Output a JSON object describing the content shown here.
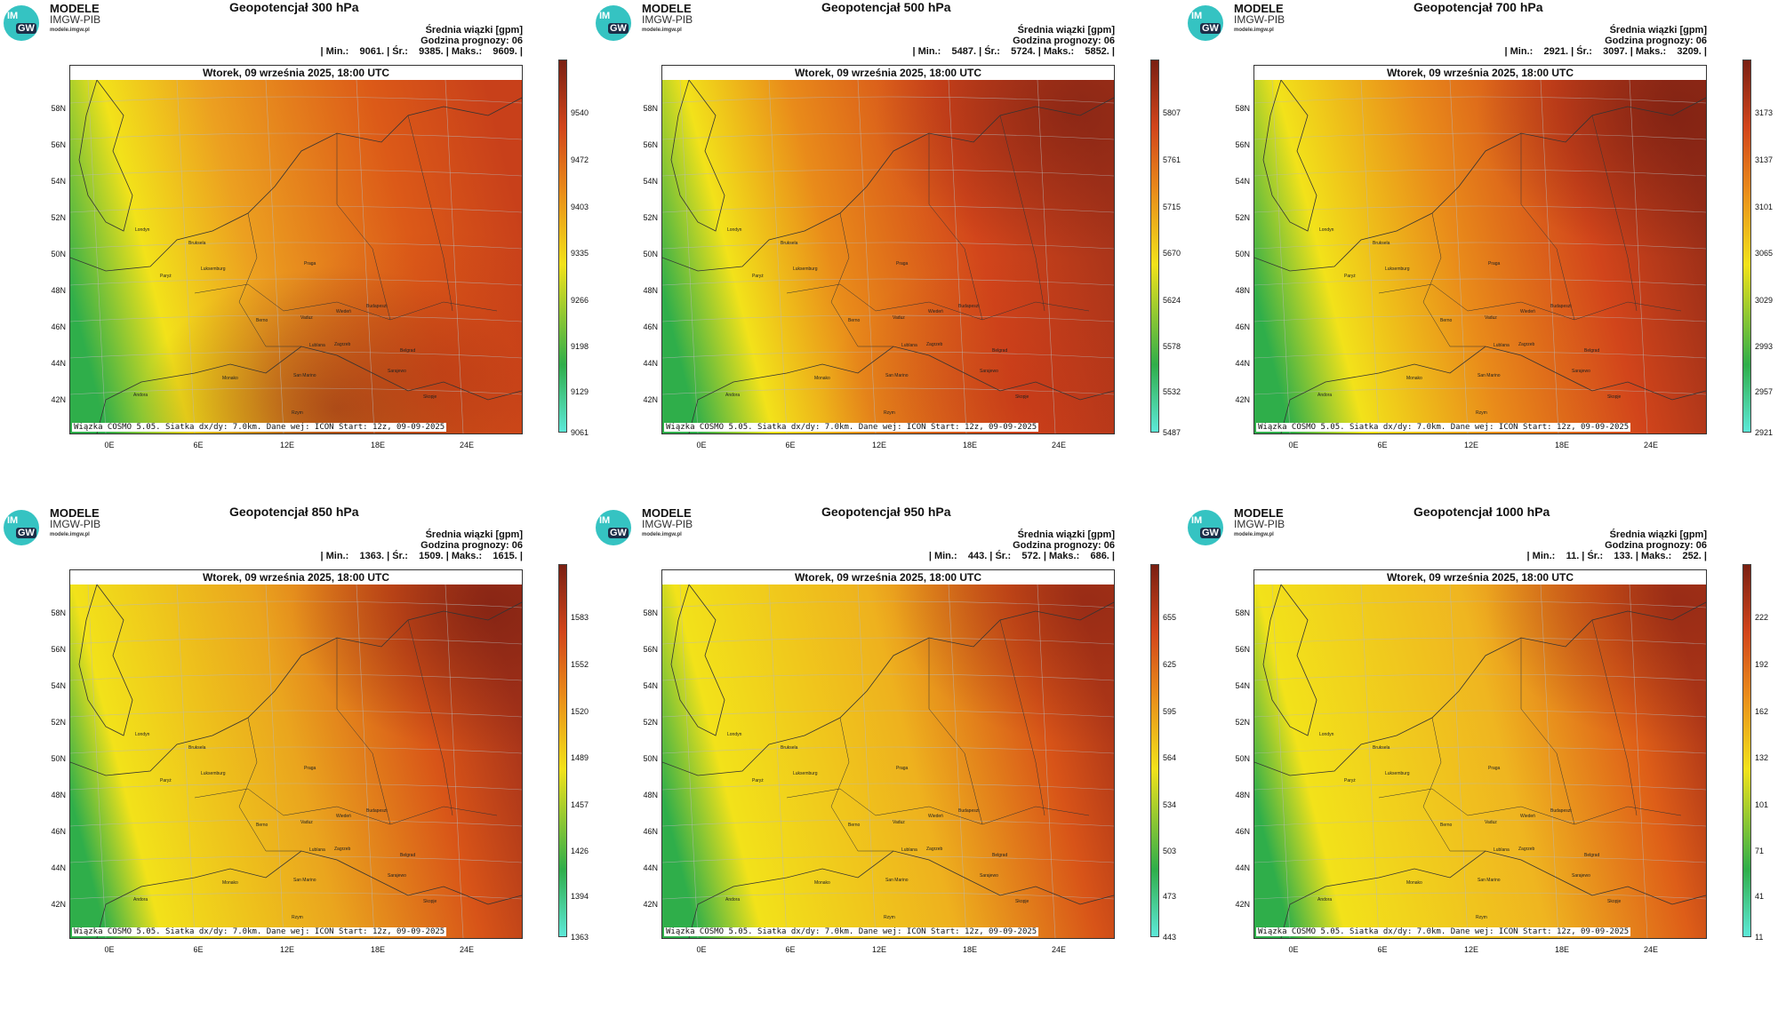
{
  "panels": [
    {
      "title": "Geopotencjał 300 hPa",
      "variable": "Średnia wiązki [gpm]",
      "forecast_hour": "Godzina prognozy: 06",
      "stats": "| Min.:    9061. | Śr.:    9385. | Maks.:    9609. |",
      "date": "Wtorek, 09 września 2025, 18:00 UTC",
      "colorbar": [
        "9540",
        "9472",
        "9403",
        "9335",
        "9266",
        "9198",
        "9129",
        "9061"
      ]
    },
    {
      "title": "Geopotencjał 500 hPa",
      "variable": "Średnia wiązki [gpm]",
      "forecast_hour": "Godzina prognozy: 06",
      "stats": "| Min.:    5487. | Śr.:    5724. | Maks.:    5852. |",
      "date": "Wtorek, 09 września 2025, 18:00 UTC",
      "colorbar": [
        "5807",
        "5761",
        "5715",
        "5670",
        "5624",
        "5578",
        "5532",
        "5487"
      ]
    },
    {
      "title": "Geopotencjał 700 hPa",
      "variable": "Średnia wiązki [gpm]",
      "forecast_hour": "Godzina prognozy: 06",
      "stats": "| Min.:    2921. | Śr.:    3097. | Maks.:    3209. |",
      "date": "Wtorek, 09 września 2025, 18:00 UTC",
      "colorbar": [
        "3173",
        "3137",
        "3101",
        "3065",
        "3029",
        "2993",
        "2957",
        "2921"
      ]
    },
    {
      "title": "Geopotencjał 850 hPa",
      "variable": "Średnia wiązki [gpm]",
      "forecast_hour": "Godzina prognozy: 06",
      "stats": "| Min.:    1363. | Śr.:    1509. | Maks.:    1615. |",
      "date": "Wtorek, 09 września 2025, 18:00 UTC",
      "colorbar": [
        "1583",
        "1552",
        "1520",
        "1489",
        "1457",
        "1426",
        "1394",
        "1363"
      ]
    },
    {
      "title": "Geopotencjał 950 hPa",
      "variable": "Średnia wiązki [gpm]",
      "forecast_hour": "Godzina prognozy: 06",
      "stats": "| Min.:    443. | Śr.:    572. | Maks.:    686. |",
      "date": "Wtorek, 09 września 2025, 18:00 UTC",
      "colorbar": [
        "655",
        "625",
        "595",
        "564",
        "534",
        "503",
        "473",
        "443"
      ]
    },
    {
      "title": "Geopotencjał 1000 hPa",
      "variable": "Średnia wiązki [gpm]",
      "forecast_hour": "Godzina prognozy: 06",
      "stats": "| Min.:    11. | Śr.:    133. | Maks.:    252. |",
      "date": "Wtorek, 09 września 2025, 18:00 UTC",
      "colorbar": [
        "222",
        "192",
        "162",
        "132",
        "101",
        "71",
        "41",
        "11"
      ]
    }
  ],
  "brand": {
    "logo_top": "IM",
    "logo_bottom": "GW",
    "name": "MODELE",
    "org": "IMGW-PIB",
    "url": "modele.imgw.pl"
  },
  "footer": "Wiązka COSMO 5.05. Siatka dx/dy: 7.0km. Dane wej: ICON Start: 12z, 09-09-2025",
  "lat_labels": [
    "58N",
    "56N",
    "54N",
    "52N",
    "50N",
    "48N",
    "46N",
    "44N",
    "42N"
  ],
  "lon_labels": [
    "0E",
    "6E",
    "12E",
    "18E",
    "24E"
  ],
  "cities": [
    "Londyn",
    "Bruksela",
    "Paryż",
    "Luksemburg",
    "Praga",
    "Wiedeń",
    "Budapeszt",
    "Berno",
    "Vaduz",
    "Zagrzeb",
    "Belgrad",
    "Lublana",
    "Monako",
    "San Marino",
    "Sarajewo",
    "Andora",
    "Rzym",
    "Skopje"
  ],
  "colors": {
    "green": "#2fae4a",
    "yellow": "#f2e21a",
    "orange": "#e98b1a",
    "red": "#d2451b",
    "darkred": "#7a1f12",
    "cyan": "#5de8d8"
  }
}
